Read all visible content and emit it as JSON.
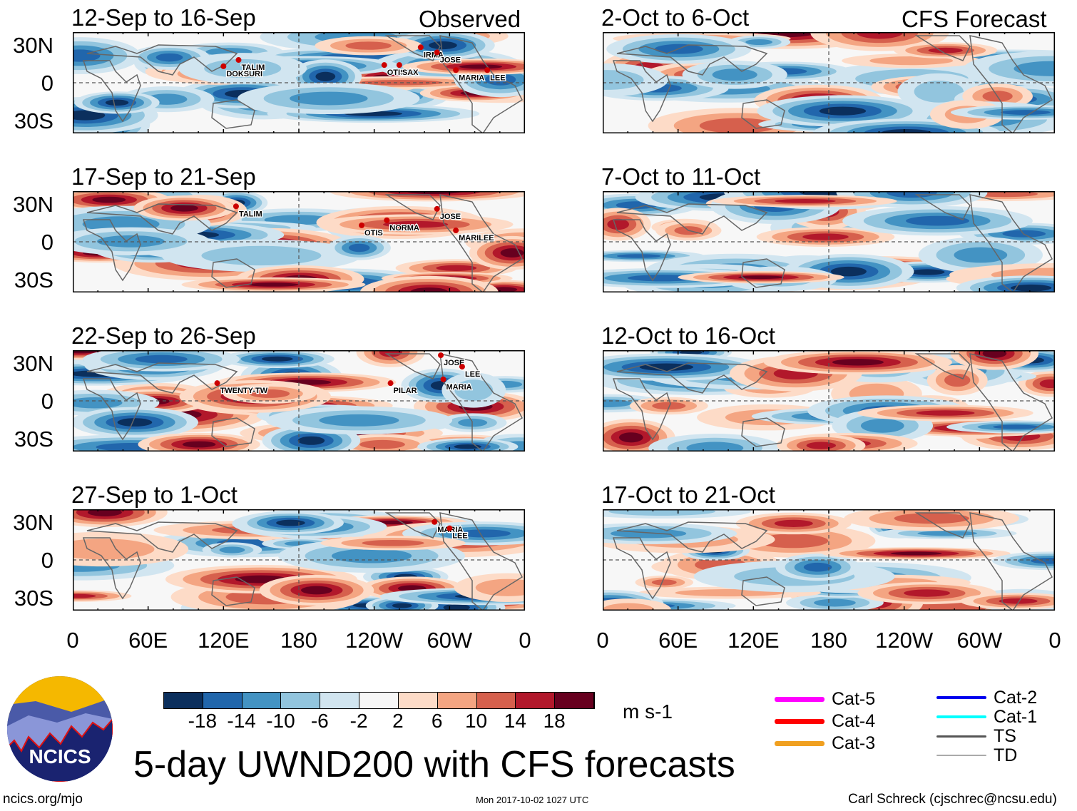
{
  "chart_data": {
    "type": "heatmap",
    "title": "5-day UWND200 with CFS forecasts",
    "variable": "200-hPa zonal wind anomaly",
    "units": "m s-1",
    "headers": {
      "observed": "Observed",
      "forecast": "CFS Forecast"
    },
    "lat_tick_labels": [
      "30N",
      "0",
      "30S"
    ],
    "lon_tick_labels": [
      "0",
      "60E",
      "120E",
      "180",
      "120W",
      "60W",
      "0"
    ],
    "colorbar": {
      "levels": [
        -18,
        -14,
        -10,
        -6,
        -2,
        2,
        6,
        10,
        14,
        18
      ],
      "tick_labels": [
        "-18",
        "-14",
        "-10",
        "-6",
        "-2",
        "2",
        "6",
        "10",
        "14",
        "18"
      ],
      "colors": [
        "#0b2f5d",
        "#2166ac",
        "#4393c3",
        "#92c5de",
        "#d1e5f0",
        "#f7f7f7",
        "#fddbc7",
        "#f4a582",
        "#d6604d",
        "#b2182b",
        "#67001f"
      ]
    },
    "panels": [
      {
        "title": "12-Sep to 16-Sep",
        "source": "observed",
        "storms": [
          {
            "name": "TALIM",
            "lon": 132,
            "lat": 18
          },
          {
            "name": "DOKSURI",
            "lon": 120,
            "lat": 13
          },
          {
            "name": "OTIS",
            "lon": 248,
            "lat": 14
          },
          {
            "name": "SAX",
            "lon": 260,
            "lat": 14
          },
          {
            "name": "IRMA",
            "lon": 277,
            "lat": 28
          },
          {
            "name": "JOSE",
            "lon": 290,
            "lat": 24
          },
          {
            "name": "MARIA",
            "lon": 305,
            "lat": 10
          },
          {
            "name": "LEE",
            "lon": 330,
            "lat": 10
          }
        ]
      },
      {
        "title": "17-Sep to 21-Sep",
        "source": "observed",
        "storms": [
          {
            "name": "TALIM",
            "lon": 130,
            "lat": 28
          },
          {
            "name": "OTIS",
            "lon": 230,
            "lat": 13
          },
          {
            "name": "NORMA",
            "lon": 250,
            "lat": 17
          },
          {
            "name": "JOSE",
            "lon": 290,
            "lat": 26
          },
          {
            "name": "MARILEE",
            "lon": 305,
            "lat": 9
          }
        ]
      },
      {
        "title": "22-Sep to 26-Sep",
        "source": "observed",
        "storms": [
          {
            "name": "TWENTY-TW",
            "lon": 115,
            "lat": 14
          },
          {
            "name": "PILAR",
            "lon": 253,
            "lat": 14
          },
          {
            "name": "JOSE",
            "lon": 293,
            "lat": 36
          },
          {
            "name": "LEE",
            "lon": 310,
            "lat": 27
          },
          {
            "name": "MARIA",
            "lon": 295,
            "lat": 17
          }
        ]
      },
      {
        "title": "27-Sep to 1-Oct",
        "source": "observed",
        "storms": [
          {
            "name": "MARIA",
            "lon": 288,
            "lat": 30
          },
          {
            "name": "LEE",
            "lon": 300,
            "lat": 25
          }
        ]
      },
      {
        "title": "2-Oct to 6-Oct",
        "source": "forecast",
        "storms": []
      },
      {
        "title": "7-Oct to 11-Oct",
        "source": "forecast",
        "storms": []
      },
      {
        "title": "12-Oct to 16-Oct",
        "source": "forecast",
        "storms": []
      },
      {
        "title": "17-Oct to 21-Oct",
        "source": "forecast",
        "storms": []
      }
    ],
    "legend": {
      "location": "bottom-right",
      "entries": [
        {
          "label": "Cat-5",
          "color": "#ff00ff"
        },
        {
          "label": "Cat-4",
          "color": "#ff0000"
        },
        {
          "label": "Cat-3",
          "color": "#f0a020"
        },
        {
          "label": "Cat-2",
          "color": "#0000ee"
        },
        {
          "label": "Cat-1",
          "color": "#00ffff"
        },
        {
          "label": "TS",
          "color": "#555555"
        },
        {
          "label": "TD",
          "color": "#aaaaaa"
        }
      ]
    }
  },
  "footer": {
    "logo_text": "NCICS",
    "url": "ncics.org/mjo",
    "timestamp": "Mon 2017-10-02 1027 UTC",
    "author": "Carl Schreck (cjschrec@ncsu.edu)"
  }
}
